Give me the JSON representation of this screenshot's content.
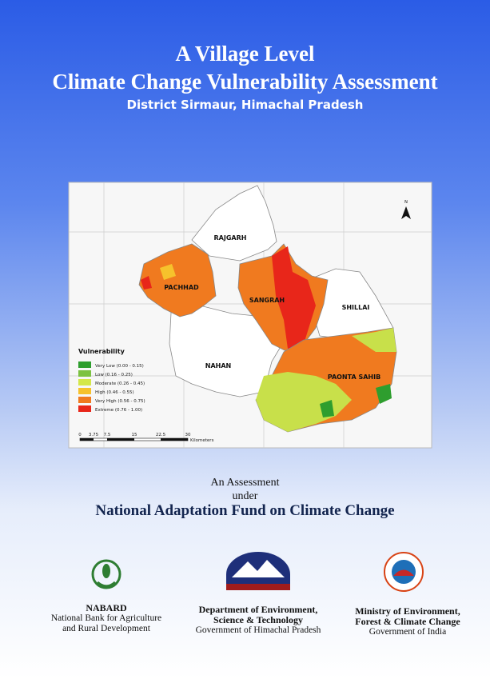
{
  "header": {
    "title_line1": "A Village Level",
    "title_line2": "Climate Change Vulnerability Assessment",
    "subtitle": "District Sirmaur, Himachal Pradesh"
  },
  "map": {
    "regions": [
      "RAJGARH",
      "PACHHAD",
      "SANGRAH",
      "SHILLAI",
      "NAHAN",
      "PAONTA SAHIB"
    ],
    "north": "N",
    "legend": {
      "title": "Vulnerability",
      "items": [
        "Very Low (0.00 - 0.15)",
        "Low (0.16 - 0.25)",
        "Moderate (0.26 - 0.45)",
        "High (0.46 - 0.55)",
        "Very High (0.56 - 0.75)",
        "Extreme (0.76 - 1.00)"
      ]
    },
    "scale": {
      "ticks": [
        "0",
        "3.75",
        "7.5",
        "15",
        "22.5",
        "30"
      ],
      "unit": "Kilometers"
    }
  },
  "assessment": {
    "line1": "An Assessment",
    "line2": "under",
    "fund": "National Adaptation Fund on Climate Change"
  },
  "logos": [
    {
      "bold": [
        "NABARD"
      ],
      "normal": [
        "National Bank for Agriculture",
        "and Rural Development"
      ]
    },
    {
      "bold": [
        "Department of Environment,",
        "Science & Technology"
      ],
      "normal": [
        "Government of Himachal Pradesh"
      ]
    },
    {
      "bold": [
        "Ministry of Environment,",
        "Forest & Climate Change"
      ],
      "normal": [
        "Government of India"
      ]
    }
  ]
}
